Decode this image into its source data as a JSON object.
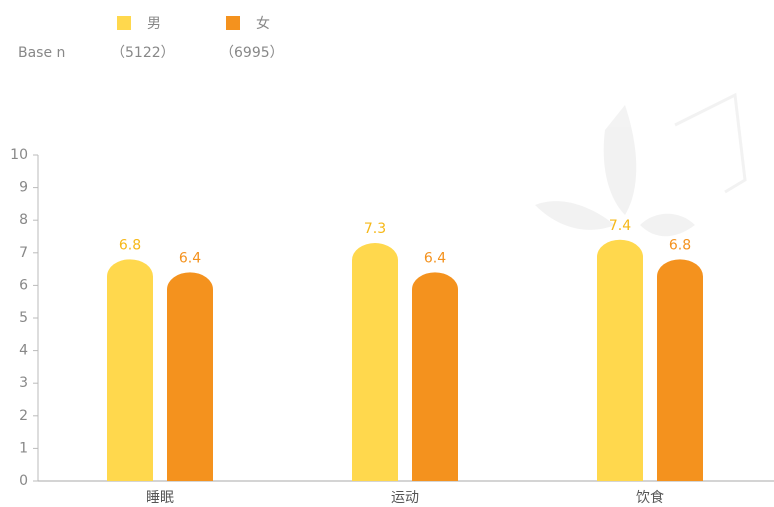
{
  "chart_data": {
    "type": "bar",
    "base_label": "Base n",
    "categories": [
      "睡眠",
      "运动",
      "饮食"
    ],
    "series": [
      {
        "name": "男",
        "base": "（5122）",
        "color": "#FFD84D",
        "label_color": "#F6B818",
        "values": [
          6.8,
          7.3,
          7.4
        ]
      },
      {
        "name": "女",
        "base": "（6995）",
        "color": "#F4921E",
        "label_color": "#F4921E",
        "values": [
          6.4,
          6.4,
          6.8
        ]
      }
    ],
    "ylim": [
      0,
      10
    ],
    "yticks": [
      0,
      1,
      2,
      3,
      4,
      5,
      6,
      7,
      8,
      9,
      10
    ]
  }
}
